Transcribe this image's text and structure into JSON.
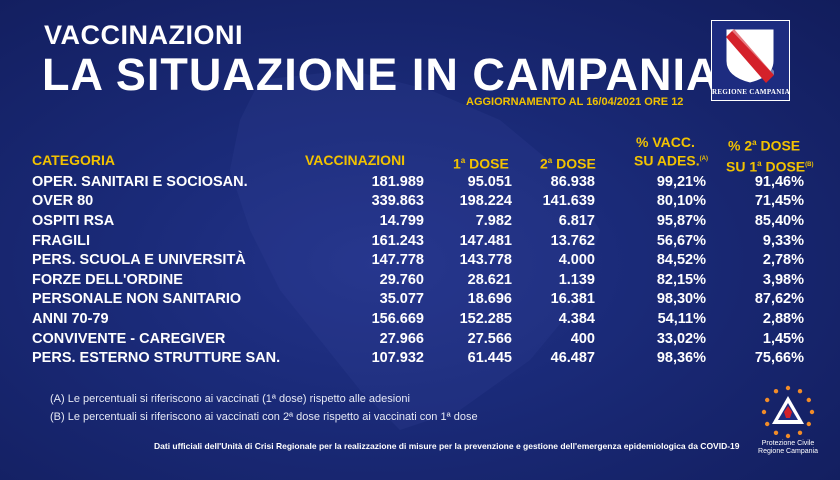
{
  "header": {
    "kicker": "VACCINAZIONI",
    "title": "LA SITUAZIONE IN CAMPANIA",
    "update": "AGGIORNAMENTO AL 16/04/2021 ORE 12",
    "logo_label": "REGIONE CAMPANIA"
  },
  "table": {
    "headers": {
      "category": "CATEGORIA",
      "vaccinations": "VACCINAZIONI",
      "dose1_num": "1",
      "dose1_sup": "a",
      "dose1_word": " DOSE",
      "dose2_num": "2",
      "dose2_sup": "a",
      "dose2_word": " DOSE",
      "pct_vacc_line1": "% VACC.",
      "pct_vacc_line2": "SU ADES.",
      "pct_vacc_note": "(A)",
      "pct_dose2_line1": "% 2",
      "pct_dose2_sup": "a",
      "pct_dose2_line1_rest": " DOSE",
      "pct_dose2_line2": "SU 1",
      "pct_dose2_sup2": "a",
      "pct_dose2_line2_rest": " DOSE",
      "pct_dose2_note": "(B)"
    },
    "rows": [
      [
        "OPER. SANITARI E SOCIOSAN.",
        "181.989",
        "95.051",
        "86.938",
        "99,21%",
        "91,46%"
      ],
      [
        "OVER 80",
        "339.863",
        "198.224",
        "141.639",
        "80,10%",
        "71,45%"
      ],
      [
        "OSPITI RSA",
        "14.799",
        "7.982",
        "6.817",
        "95,87%",
        "85,40%"
      ],
      [
        "FRAGILI",
        "161.243",
        "147.481",
        "13.762",
        "56,67%",
        "9,33%"
      ],
      [
        "PERS. SCUOLA E UNIVERSITÀ",
        "147.778",
        "143.778",
        "4.000",
        "84,52%",
        "2,78%"
      ],
      [
        "FORZE DELL'ORDINE",
        "29.760",
        "28.621",
        "1.139",
        "82,15%",
        "3,98%"
      ],
      [
        "PERSONALE NON SANITARIO",
        "35.077",
        "18.696",
        "16.381",
        "98,30%",
        "87,62%"
      ],
      [
        "ANNI 70-79",
        "156.669",
        "152.285",
        "4.384",
        "54,11%",
        "2,88%"
      ],
      [
        "CONVIVENTE - CAREGIVER",
        "27.966",
        "27.566",
        "400",
        "33,02%",
        "1,45%"
      ],
      [
        "PERS. ESTERNO STRUTTURE SAN.",
        "107.932",
        "61.445",
        "46.487",
        "98,36%",
        "75,66%"
      ]
    ]
  },
  "notes": {
    "a": "(A) Le percentuali si riferiscono ai vaccinati (1ª dose) rispetto alle adesioni",
    "b": "(B) Le percentuali si riferiscono ai vaccinati con 2ª dose rispetto ai vaccinati con 1ª dose"
  },
  "footer": "Dati ufficiali dell'Unità di Crisi Regionale per la realizzazione di misure per la prevenzione e gestione dell'emergenza epidemiologica da COVID-19",
  "pc_logo": {
    "line1": "Protezione Civile",
    "line2": "Regione Campania"
  },
  "colors": {
    "background": "#16246b",
    "accent": "#f2c200",
    "text": "#ffffff",
    "logo_red": "#d4212a",
    "pc_orange": "#f28c28"
  }
}
